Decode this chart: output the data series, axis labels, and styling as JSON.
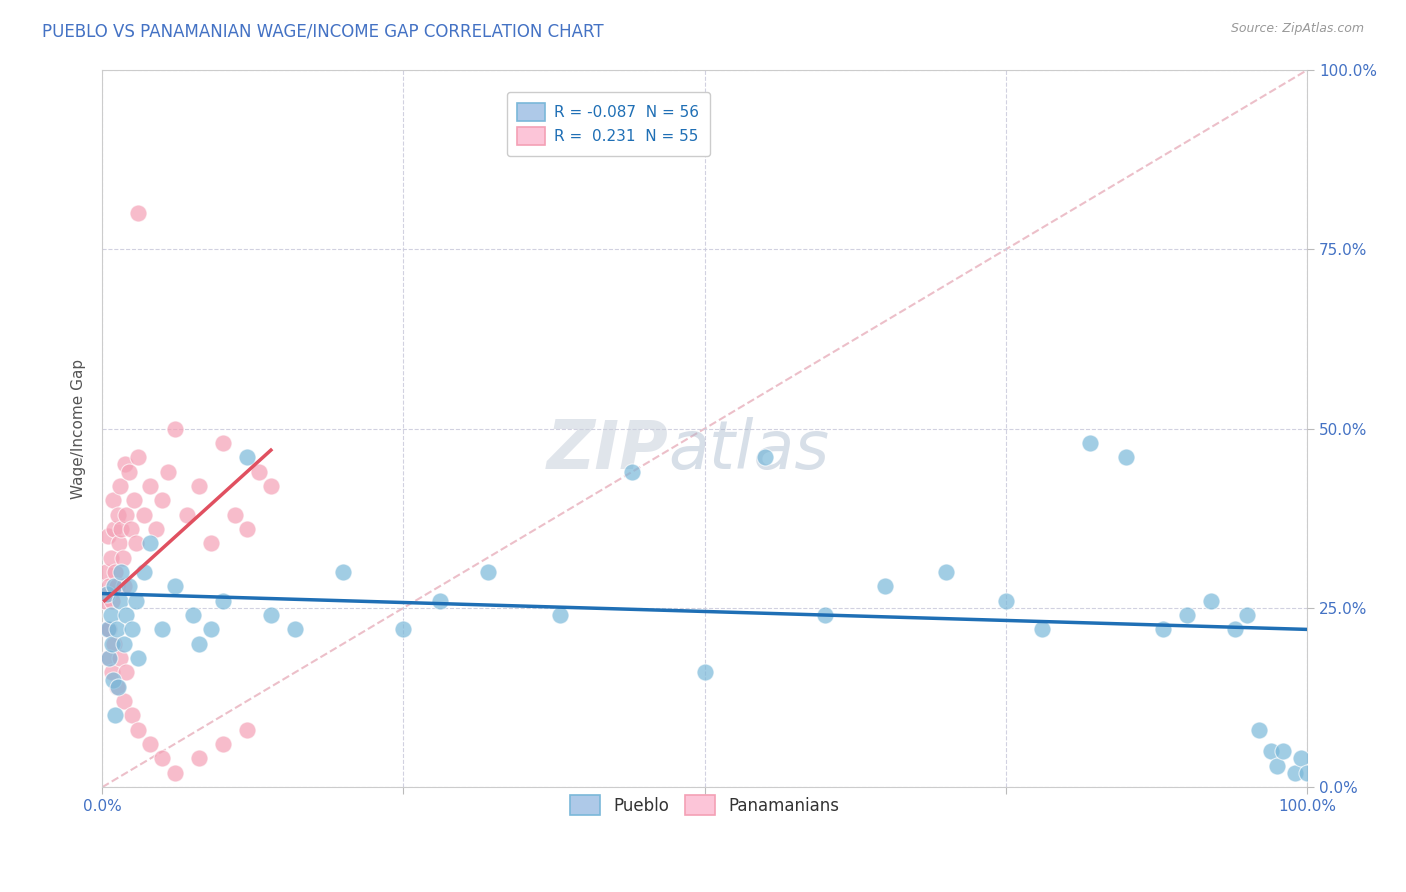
{
  "title": "PUEBLO VS PANAMANIAN WAGE/INCOME GAP CORRELATION CHART",
  "source": "Source: ZipAtlas.com",
  "ylabel": "Wage/Income Gap",
  "legend_pueblo_label": "Pueblo",
  "legend_panamanian_label": "Panamanians",
  "r_pueblo": -0.087,
  "n_pueblo": 56,
  "r_panamanian": 0.231,
  "n_panamanian": 55,
  "pueblo_color": "#7ab8d9",
  "panamanian_color": "#f4a0b5",
  "regression_pueblo_color": "#1f6fb5",
  "regression_panamanian_color": "#e05060",
  "diagonal_color": "#e8b0bc",
  "background_color": "#ffffff",
  "title_color": "#4472c4",
  "axis_label_color": "#4472c4",
  "grid_color": "#ccccdd",
  "watermark_zip": "ZIP",
  "watermark_atlas": "atlas",
  "pueblo_x": [
    0.4,
    0.5,
    0.6,
    0.7,
    0.8,
    0.9,
    1.0,
    1.1,
    1.2,
    1.3,
    1.5,
    1.6,
    1.8,
    2.0,
    2.2,
    2.5,
    2.8,
    3.0,
    3.5,
    4.0,
    5.0,
    6.0,
    7.5,
    8.0,
    9.0,
    10.0,
    12.0,
    14.0,
    16.0,
    20.0,
    25.0,
    28.0,
    32.0,
    38.0,
    44.0,
    50.0,
    55.0,
    60.0,
    65.0,
    70.0,
    75.0,
    78.0,
    82.0,
    85.0,
    88.0,
    90.0,
    92.0,
    94.0,
    95.0,
    96.0,
    97.0,
    97.5,
    98.0,
    99.0,
    99.5,
    100.0
  ],
  "pueblo_y": [
    27.0,
    22.0,
    18.0,
    24.0,
    20.0,
    15.0,
    28.0,
    10.0,
    22.0,
    14.0,
    26.0,
    30.0,
    20.0,
    24.0,
    28.0,
    22.0,
    26.0,
    18.0,
    30.0,
    34.0,
    22.0,
    28.0,
    24.0,
    20.0,
    22.0,
    26.0,
    46.0,
    24.0,
    22.0,
    30.0,
    22.0,
    26.0,
    30.0,
    24.0,
    44.0,
    16.0,
    46.0,
    24.0,
    28.0,
    30.0,
    26.0,
    22.0,
    48.0,
    46.0,
    22.0,
    24.0,
    26.0,
    22.0,
    24.0,
    8.0,
    5.0,
    3.0,
    5.0,
    2.0,
    4.0,
    2.0
  ],
  "panamanian_x": [
    0.2,
    0.3,
    0.4,
    0.5,
    0.6,
    0.7,
    0.8,
    0.9,
    1.0,
    1.1,
    1.2,
    1.3,
    1.4,
    1.5,
    1.6,
    1.7,
    1.8,
    1.9,
    2.0,
    2.2,
    2.4,
    2.6,
    2.8,
    3.0,
    3.5,
    4.0,
    4.5,
    5.0,
    5.5,
    6.0,
    7.0,
    8.0,
    9.0,
    10.0,
    11.0,
    12.0,
    13.0,
    14.0,
    0.5,
    0.6,
    0.8,
    1.0,
    1.2,
    1.5,
    1.8,
    2.0,
    2.5,
    3.0,
    4.0,
    5.0,
    6.0,
    8.0,
    10.0,
    12.0,
    3.0
  ],
  "panamanian_y": [
    26.0,
    30.0,
    22.0,
    35.0,
    28.0,
    32.0,
    26.0,
    40.0,
    36.0,
    30.0,
    28.0,
    38.0,
    34.0,
    42.0,
    36.0,
    32.0,
    28.0,
    45.0,
    38.0,
    44.0,
    36.0,
    40.0,
    34.0,
    46.0,
    38.0,
    42.0,
    36.0,
    40.0,
    44.0,
    50.0,
    38.0,
    42.0,
    34.0,
    48.0,
    38.0,
    36.0,
    44.0,
    42.0,
    18.0,
    22.0,
    16.0,
    20.0,
    14.0,
    18.0,
    12.0,
    16.0,
    10.0,
    8.0,
    6.0,
    4.0,
    2.0,
    4.0,
    6.0,
    8.0,
    80.0
  ]
}
